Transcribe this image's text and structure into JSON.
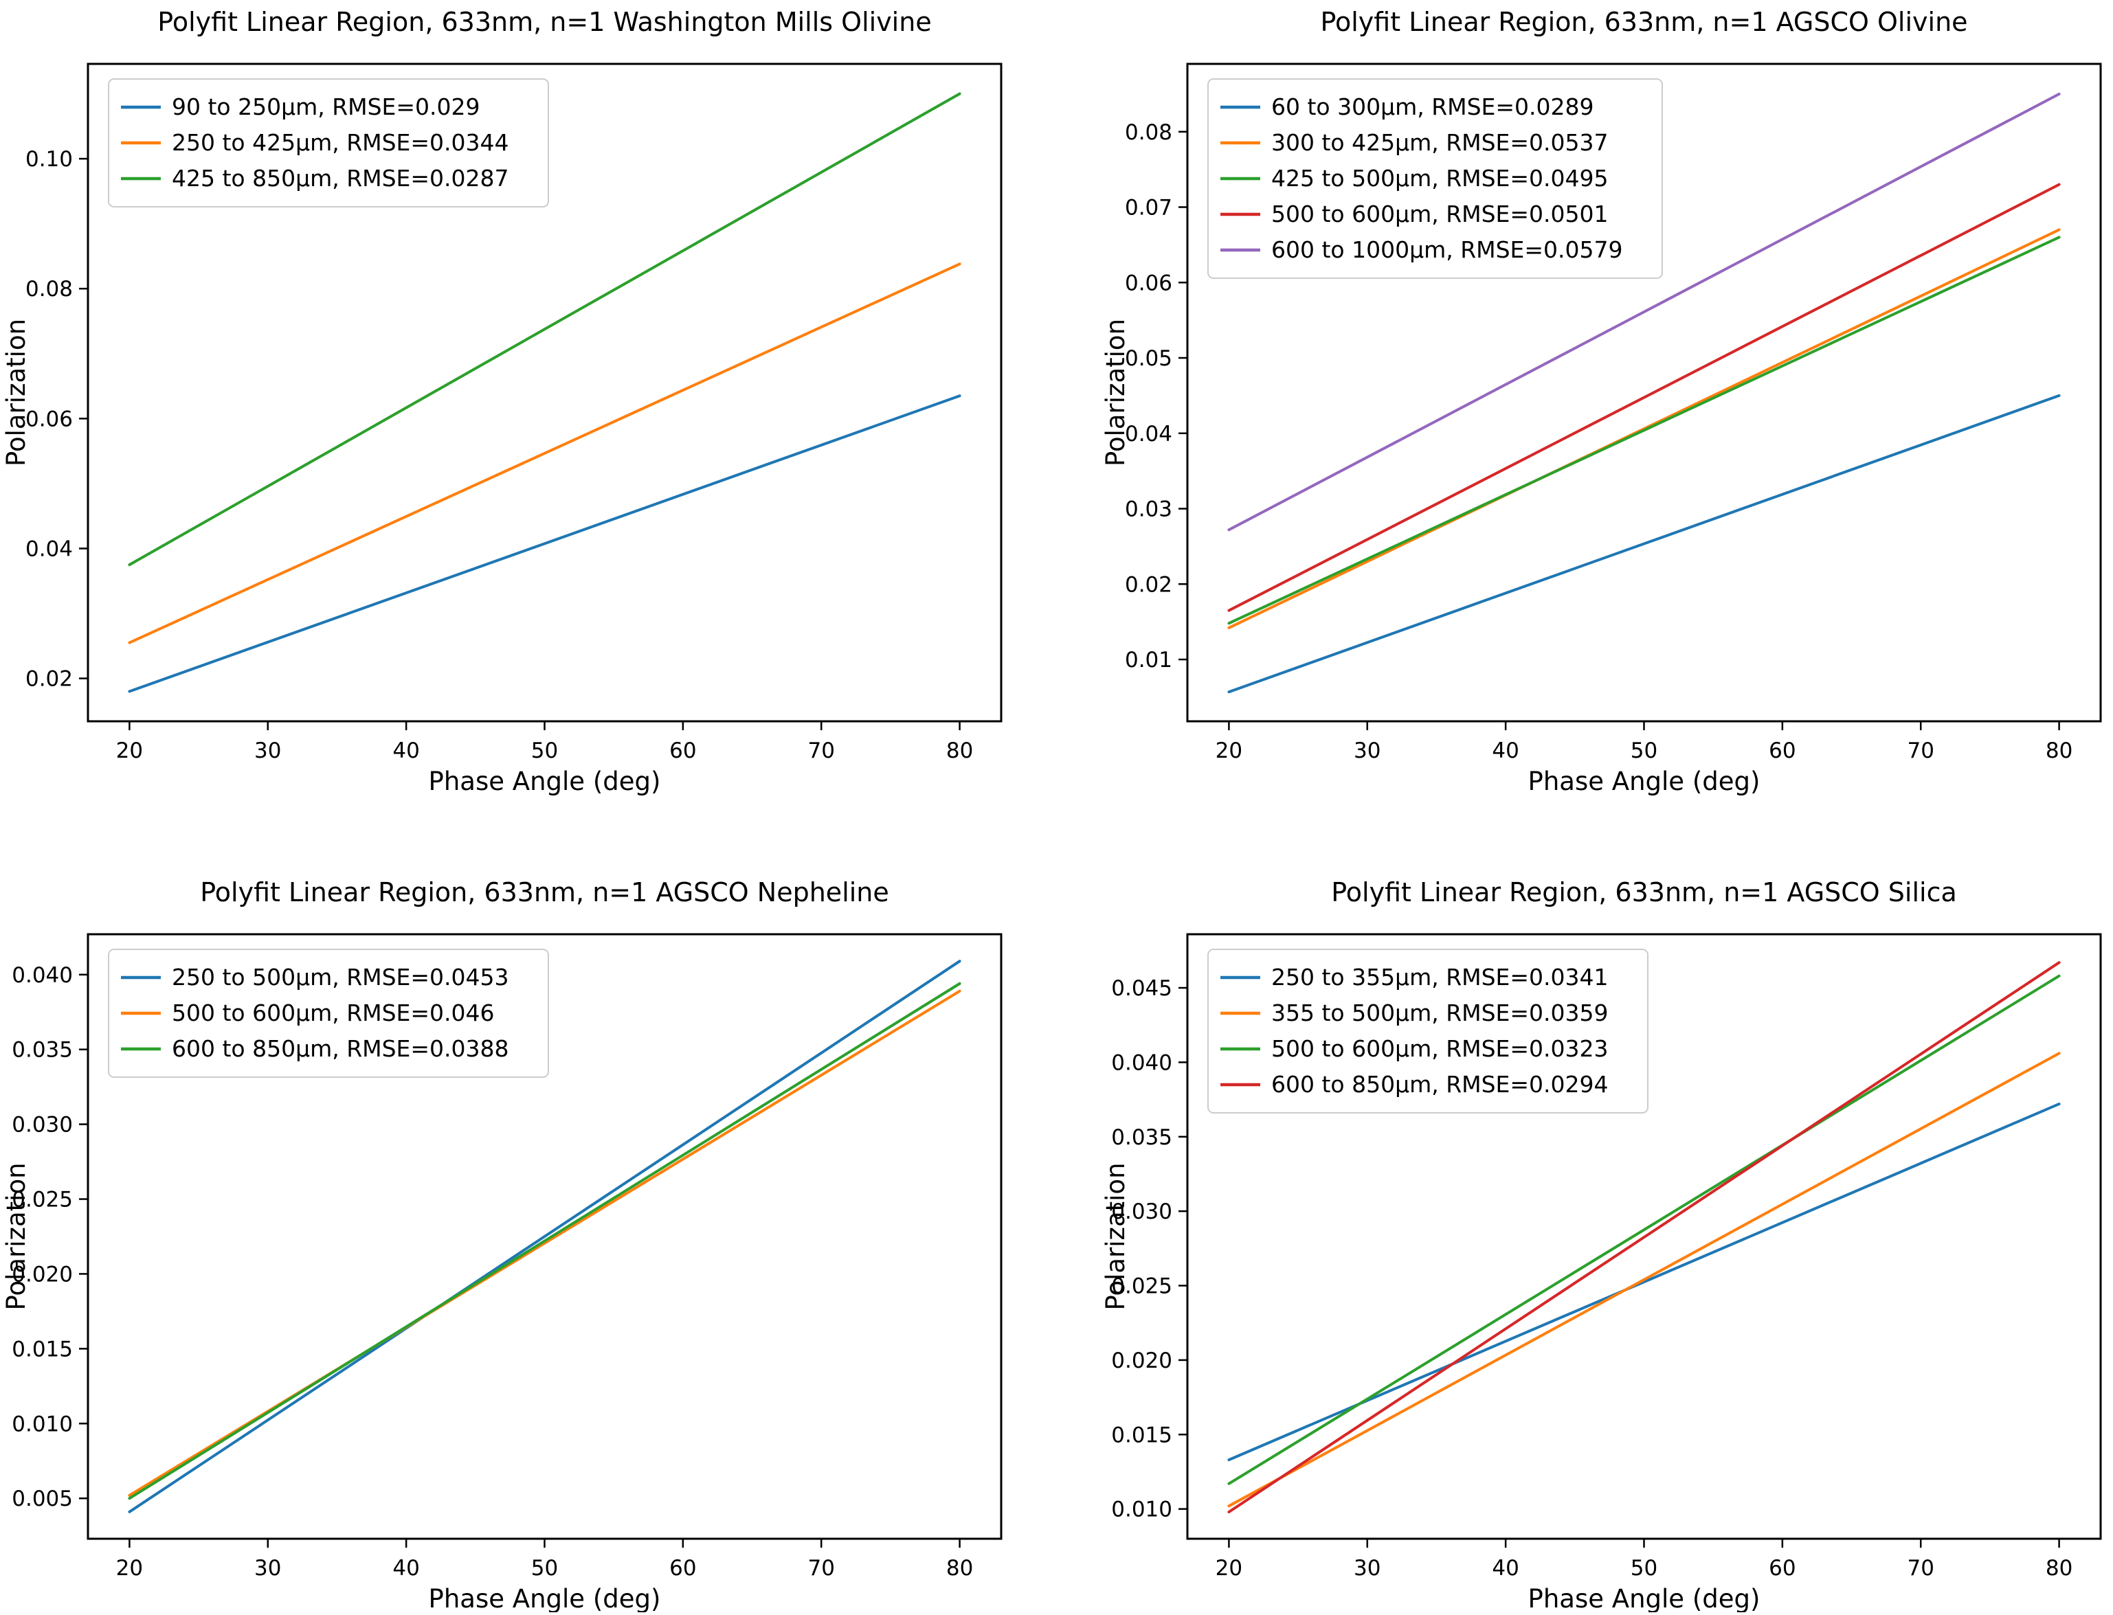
{
  "figure": {
    "background": "#ffffff",
    "kind": "matplotlib 2x2 subplot grid of linear polyfit lines",
    "shared_xlabel": "Phase Angle (deg)",
    "shared_ylabel": "Polarization"
  },
  "palette": {
    "blue": "#1f77b4",
    "orange": "#ff7f0e",
    "green": "#2ca02c",
    "red": "#d62728",
    "purple": "#9467bd",
    "spine": "#000000",
    "legend_border": "#cccccc"
  },
  "chart_data": [
    {
      "type": "line",
      "title": "Polyfit Linear Region, 633nm, n=1 Washington Mills Olivine",
      "xlabel": "Phase Angle (deg)",
      "ylabel": "Polarization",
      "grid": false,
      "legend_position": "upper left",
      "x": [
        20,
        80
      ],
      "xlim": [
        17,
        83
      ],
      "ylim": [
        0.0134,
        0.1146
      ],
      "xticks": [
        20,
        30,
        40,
        50,
        60,
        70,
        80
      ],
      "ytick_values": [
        0.02,
        0.04,
        0.06,
        0.08,
        0.1
      ],
      "ytick_labels": [
        "0.02",
        "0.04",
        "0.06",
        "0.08",
        "0.10"
      ],
      "series": [
        {
          "name": "90 to 250µm, RMSE=0.029",
          "color": "#1f77b4",
          "y": [
            0.018,
            0.0635
          ]
        },
        {
          "name": "250 to 425µm, RMSE=0.0344",
          "color": "#ff7f0e",
          "y": [
            0.0255,
            0.0838
          ]
        },
        {
          "name": "425 to 850µm, RMSE=0.0287",
          "color": "#2ca02c",
          "y": [
            0.0375,
            0.11
          ]
        }
      ]
    },
    {
      "type": "line",
      "title": "Polyfit Linear Region, 633nm, n=1 AGSCO Olivine",
      "xlabel": "Phase Angle (deg)",
      "ylabel": "Polarization",
      "grid": false,
      "legend_position": "upper left",
      "x": [
        20,
        80
      ],
      "xlim": [
        17,
        83
      ],
      "ylim": [
        0.0018,
        0.089
      ],
      "xticks": [
        20,
        30,
        40,
        50,
        60,
        70,
        80
      ],
      "ytick_values": [
        0.01,
        0.02,
        0.03,
        0.04,
        0.05,
        0.06,
        0.07,
        0.08
      ],
      "ytick_labels": [
        "0.01",
        "0.02",
        "0.03",
        "0.04",
        "0.05",
        "0.06",
        "0.07",
        "0.08"
      ],
      "series": [
        {
          "name": "60 to 300µm, RMSE=0.0289",
          "color": "#1f77b4",
          "y": [
            0.0057,
            0.045
          ]
        },
        {
          "name": "300 to 425µm, RMSE=0.0537",
          "color": "#ff7f0e",
          "y": [
            0.0142,
            0.067
          ]
        },
        {
          "name": "425 to 500µm, RMSE=0.0495",
          "color": "#2ca02c",
          "y": [
            0.0148,
            0.066
          ]
        },
        {
          "name": "500 to 600µm, RMSE=0.0501",
          "color": "#d62728",
          "y": [
            0.0165,
            0.073
          ]
        },
        {
          "name": "600 to 1000µm, RMSE=0.0579",
          "color": "#9467bd",
          "y": [
            0.0272,
            0.085
          ]
        }
      ]
    },
    {
      "type": "line",
      "title": "Polyfit Linear Region, 633nm, n=1 AGSCO Nepheline",
      "xlabel": "Phase Angle (deg)",
      "ylabel": "Polarization",
      "grid": false,
      "legend_position": "upper left",
      "x": [
        20,
        80
      ],
      "xlim": [
        17,
        83
      ],
      "ylim": [
        0.0023,
        0.0427
      ],
      "xticks": [
        20,
        30,
        40,
        50,
        60,
        70,
        80
      ],
      "ytick_values": [
        0.005,
        0.01,
        0.015,
        0.02,
        0.025,
        0.03,
        0.035,
        0.04
      ],
      "ytick_labels": [
        "0.005",
        "0.010",
        "0.015",
        "0.020",
        "0.025",
        "0.030",
        "0.035",
        "0.040"
      ],
      "series": [
        {
          "name": "250 to 500µm, RMSE=0.0453",
          "color": "#1f77b4",
          "y": [
            0.0041,
            0.0409
          ]
        },
        {
          "name": "500 to 600µm, RMSE=0.046",
          "color": "#ff7f0e",
          "y": [
            0.0052,
            0.0389
          ]
        },
        {
          "name": "600 to 850µm, RMSE=0.0388",
          "color": "#2ca02c",
          "y": [
            0.005,
            0.0394
          ]
        }
      ]
    },
    {
      "type": "line",
      "title": "Polyfit Linear Region, 633nm, n=1 AGSCO Silica",
      "xlabel": "Phase Angle (deg)",
      "ylabel": "Polarization",
      "grid": false,
      "legend_position": "upper left",
      "x": [
        20,
        80
      ],
      "xlim": [
        17,
        83
      ],
      "ylim": [
        0.008,
        0.0486
      ],
      "xticks": [
        20,
        30,
        40,
        50,
        60,
        70,
        80
      ],
      "ytick_values": [
        0.01,
        0.015,
        0.02,
        0.025,
        0.03,
        0.035,
        0.04,
        0.045
      ],
      "ytick_labels": [
        "0.010",
        "0.015",
        "0.020",
        "0.025",
        "0.030",
        "0.035",
        "0.040",
        "0.045"
      ],
      "series": [
        {
          "name": "250 to 355µm, RMSE=0.0341",
          "color": "#1f77b4",
          "y": [
            0.0133,
            0.0372
          ]
        },
        {
          "name": "355 to 500µm, RMSE=0.0359",
          "color": "#ff7f0e",
          "y": [
            0.0102,
            0.0406
          ]
        },
        {
          "name": "500 to 600µm, RMSE=0.0323",
          "color": "#2ca02c",
          "y": [
            0.0117,
            0.0458
          ]
        },
        {
          "name": "600 to 850µm, RMSE=0.0294",
          "color": "#d62728",
          "y": [
            0.0098,
            0.0467
          ]
        }
      ]
    }
  ]
}
